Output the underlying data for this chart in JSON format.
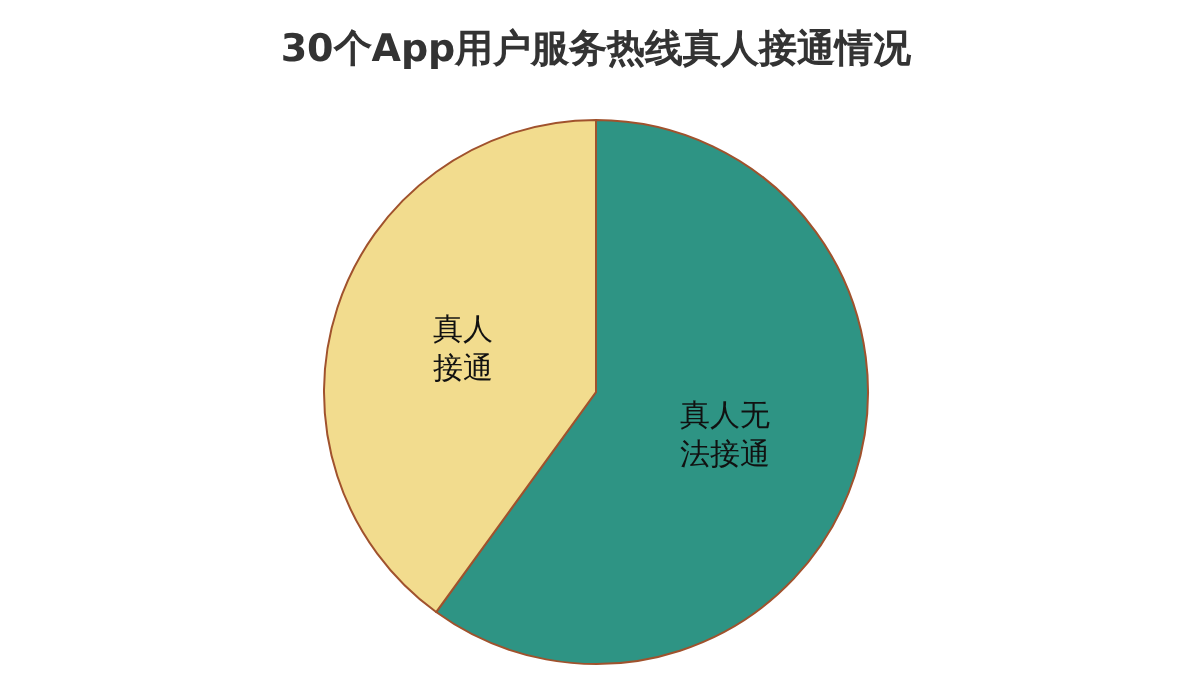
{
  "chart_data": {
    "type": "pie",
    "title": "30个App用户服务热线真人接通情况",
    "categories": [
      "真人无法接通",
      "真人接通"
    ],
    "values": [
      60,
      40
    ],
    "colors": [
      "#2e9484",
      "#f2dc8e"
    ],
    "legend": false
  }
}
